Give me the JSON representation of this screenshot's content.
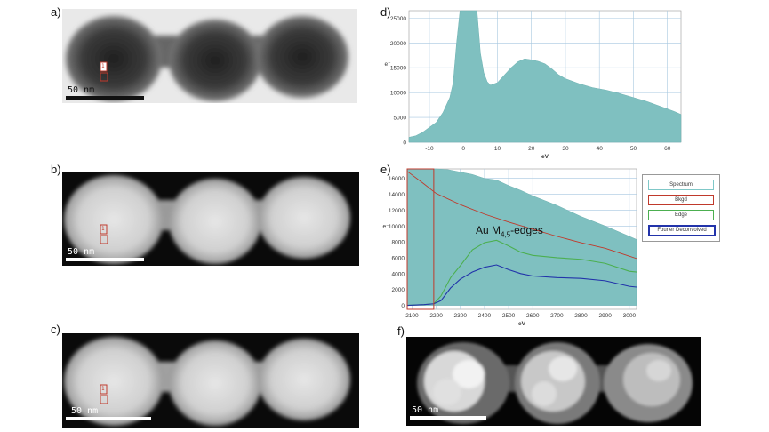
{
  "panels": {
    "a": {
      "label": "a)",
      "scale_text": "50 nm",
      "roi": "1"
    },
    "b": {
      "label": "b)",
      "scale_text": "50 nm",
      "roi": "1"
    },
    "c": {
      "label": "c)",
      "scale_text": "50 nm",
      "roi": "1"
    },
    "d": {
      "label": "d)"
    },
    "e": {
      "label": "e)",
      "annotation": "Au M4,5-edges"
    },
    "f": {
      "label": "f)",
      "scale_text": "50 nm"
    }
  },
  "legend": {
    "items": [
      {
        "label": "Spectrum",
        "color": "#7fc8c8"
      },
      {
        "label": "Bkgd",
        "color": "#c0392b"
      },
      {
        "label": "Edge",
        "color": "#4caf50"
      },
      {
        "label": "Fourier Deconvolved",
        "color": "#2233aa"
      }
    ]
  },
  "chart_data": [
    {
      "id": "d",
      "type": "area",
      "xlabel": "eV",
      "ylabel": "e⁻",
      "xlim": [
        -16,
        64
      ],
      "ylim": [
        0,
        26500
      ],
      "xticks": [
        -10,
        0,
        10,
        20,
        30,
        40,
        50,
        60
      ],
      "yticks": [
        0,
        5000,
        10000,
        15000,
        20000,
        25000
      ],
      "fill": "#7fc0c0",
      "series": [
        {
          "x": [
            -16,
            -14,
            -12,
            -10,
            -8,
            -6,
            -4,
            -3,
            -2,
            -1,
            0,
            1,
            2,
            3,
            4,
            5,
            6,
            7,
            8,
            10,
            12,
            14,
            16,
            18,
            20,
            22,
            24,
            26,
            28,
            30,
            34,
            38,
            42,
            46,
            50,
            54,
            58,
            62,
            64
          ],
          "y": [
            1000,
            1300,
            2000,
            3000,
            4000,
            6000,
            9000,
            12000,
            20000,
            26500,
            26500,
            26500,
            26500,
            26500,
            26500,
            18000,
            14000,
            12200,
            11500,
            12000,
            13500,
            15000,
            16200,
            16800,
            16600,
            16300,
            15800,
            14800,
            13600,
            12800,
            11800,
            11000,
            10500,
            9800,
            9000,
            8200,
            7200,
            6200,
            5600
          ]
        }
      ]
    },
    {
      "id": "e",
      "type": "line",
      "xlabel": "eV",
      "ylabel": "e⁻",
      "xlim": [
        2080,
        3030
      ],
      "ylim": [
        -500,
        17200
      ],
      "xticks": [
        2100,
        2200,
        2300,
        2400,
        2500,
        2600,
        2700,
        2800,
        2900,
        3000
      ],
      "yticks": [
        0,
        2000,
        4000,
        6000,
        8000,
        10000,
        12000,
        14000,
        16000
      ],
      "series": [
        {
          "name": "Spectrum",
          "x": [
            2080,
            2150,
            2200,
            2250,
            2300,
            2350,
            2400,
            2450,
            2500,
            2550,
            2600,
            2700,
            2800,
            2900,
            3000,
            3030
          ],
          "y": [
            17200,
            17200,
            17200,
            17100,
            16800,
            16500,
            16000,
            15800,
            15100,
            14500,
            13800,
            12600,
            11200,
            10000,
            8700,
            8300
          ]
        },
        {
          "name": "Bkgd",
          "x": [
            2080,
            2150,
            2200,
            2300,
            2400,
            2500,
            2600,
            2700,
            2800,
            2900,
            3000,
            3030
          ],
          "y": [
            16900,
            15300,
            14100,
            12700,
            11500,
            10500,
            9600,
            8700,
            7900,
            7200,
            6200,
            5900
          ]
        },
        {
          "name": "Edge",
          "x": [
            2080,
            2150,
            2190,
            2220,
            2260,
            2300,
            2350,
            2400,
            2450,
            2500,
            2550,
            2600,
            2700,
            2800,
            2900,
            3000,
            3030
          ],
          "y": [
            0,
            100,
            200,
            1200,
            3500,
            5000,
            7000,
            7900,
            8200,
            7500,
            6700,
            6300,
            6000,
            5800,
            5300,
            4300,
            4200
          ]
        },
        {
          "name": "Fourier Deconvolved",
          "x": [
            2080,
            2150,
            2190,
            2220,
            2260,
            2300,
            2350,
            2400,
            2450,
            2500,
            2550,
            2600,
            2700,
            2800,
            2900,
            3000,
            3030
          ],
          "y": [
            0,
            100,
            200,
            600,
            2200,
            3300,
            4200,
            4800,
            5100,
            4500,
            4000,
            3700,
            3500,
            3400,
            3100,
            2400,
            2300
          ]
        }
      ]
    }
  ]
}
